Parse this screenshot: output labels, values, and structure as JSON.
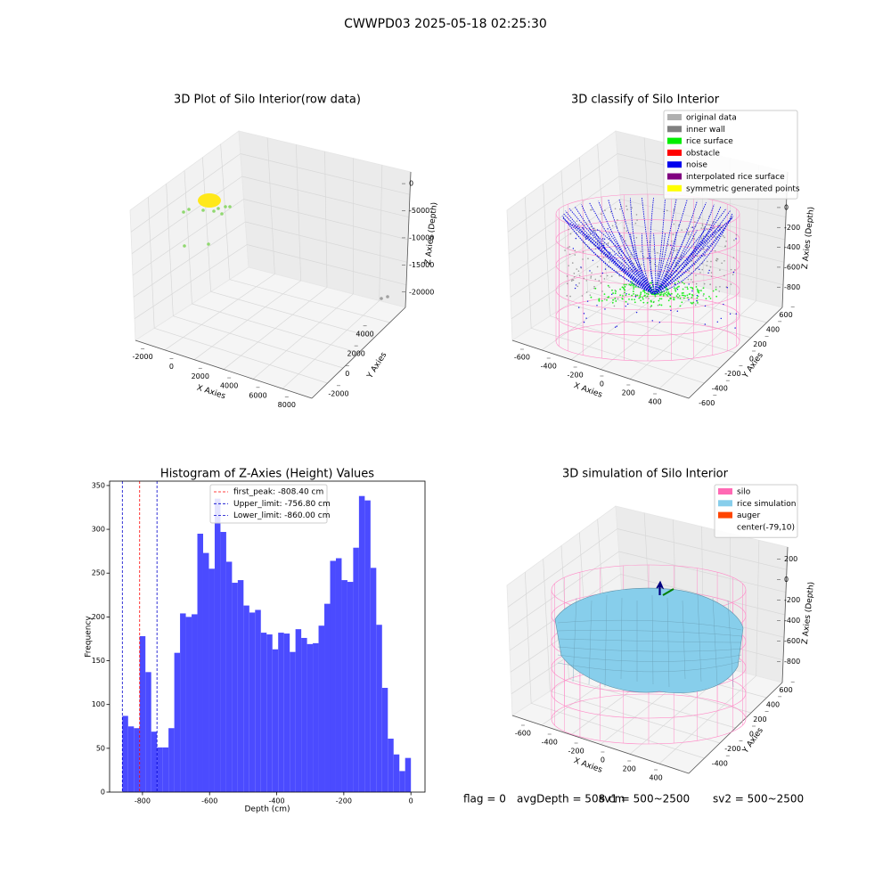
{
  "title": "CWWPD03 2025-05-18 02:25:30",
  "chart_data": [
    {
      "type": "scatter3d",
      "title": "3D Plot of Silo Interior(row data)",
      "xlabel": "X Axies",
      "ylabel": "Y Axies",
      "zlabel": "Z Axies (Depth)",
      "xlim": [
        -2500,
        9000
      ],
      "ylim": [
        -3000,
        5500
      ],
      "zlim": [
        -23000,
        1000
      ],
      "xticks": [
        -2000,
        0,
        2000,
        4000,
        6000,
        8000
      ],
      "yticks": [
        -2000,
        0,
        2000,
        4000
      ],
      "zticks": [
        0,
        -5000,
        -10000,
        -15000,
        -20000
      ]
    },
    {
      "type": "scatter3d",
      "title": "3D classify of Silo Interior",
      "xlabel": "X Axies",
      "ylabel": "Y Axies",
      "zlabel": "Z Axies (Depth)",
      "xlim": [
        -700,
        500
      ],
      "ylim": [
        -700,
        700
      ],
      "zlim": [
        -950,
        250
      ],
      "xticks": [
        -600,
        -400,
        -200,
        0,
        200,
        400
      ],
      "yticks": [
        -600,
        -400,
        -200,
        0,
        200,
        400,
        600
      ],
      "zticks": [
        0,
        -200,
        -400,
        -600,
        -800
      ],
      "legend": [
        {
          "name": "original data",
          "color": "#b0b0b0"
        },
        {
          "name": "inner wall",
          "color": "#808080"
        },
        {
          "name": "rice surface",
          "color": "#00ee00"
        },
        {
          "name": "obstacle",
          "color": "#ff0000"
        },
        {
          "name": "noise",
          "color": "#0000ee"
        },
        {
          "name": "interpolated rice surface",
          "color": "#800080"
        },
        {
          "name": "symmetric generated points",
          "color": "#ffff00"
        }
      ]
    },
    {
      "type": "histogram",
      "title": "Histogram of Z-Axies (Height) Values",
      "xlabel": "Depth (cm)",
      "ylabel": "Frequency",
      "color": "#4b4bff",
      "bins": [
        -860,
        -842.8,
        -825.6,
        -808.4,
        -791.2,
        -774,
        -756.8,
        -739.6,
        -722.4,
        -705.2,
        -688,
        -670.8,
        -653.6,
        -636.4,
        -619.2,
        -602,
        -584.8,
        -567.6,
        -550.4,
        -533.2,
        -516,
        -498.8,
        -481.6,
        -464.4,
        -447.2,
        -430,
        -412.8,
        -395.6,
        -378.4,
        -361.2,
        -344,
        -326.8,
        -309.6,
        -292.4,
        -275.2,
        -258,
        -240.8,
        -223.6,
        -206.4,
        -189.2,
        -172,
        -154.8,
        -137.6,
        -120.4,
        -103.2,
        -86,
        -68.8,
        -51.6,
        -34.4,
        -17.2,
        0
      ],
      "values": [
        87,
        75,
        73,
        178,
        137,
        69,
        51,
        51,
        73,
        159,
        204,
        200,
        203,
        295,
        273,
        255,
        335,
        297,
        263,
        239,
        242,
        213,
        205,
        208,
        182,
        180,
        163,
        182,
        181,
        160,
        186,
        176,
        169,
        170,
        190,
        215,
        264,
        267,
        242,
        240,
        279,
        338,
        333,
        256,
        191,
        119,
        61,
        43,
        24,
        39
      ],
      "xlim": [
        -898,
        42
      ],
      "ylim": [
        0,
        355
      ],
      "xticks": [
        -800,
        -600,
        -400,
        -200,
        0
      ],
      "yticks": [
        0,
        50,
        100,
        150,
        200,
        250,
        300,
        350
      ],
      "vlines": [
        {
          "name": "first_peak: -808.40 cm",
          "value": -808.4,
          "color": "#ff0000"
        },
        {
          "name": "Upper_limit: -756.80 cm",
          "value": -756.8,
          "color": "#0000cc"
        },
        {
          "name": "Lower_limit: -860.00 cm",
          "value": -860,
          "color": "#0000cc"
        }
      ]
    },
    {
      "type": "surface3d",
      "title": "3D simulation of Silo Interior",
      "xlabel": "X Axies",
      "ylabel": "Y Axies",
      "zlabel": "Z Axies (Depth)",
      "xlim": [
        -700,
        500
      ],
      "ylim": [
        -700,
        700
      ],
      "zlim": [
        -950,
        300
      ],
      "xticks": [
        -600,
        -400,
        -200,
        0,
        200,
        400
      ],
      "yticks": [
        -400,
        -200,
        0,
        200,
        400,
        600
      ],
      "zticks": [
        200,
        0,
        -200,
        -400,
        -600,
        -800
      ],
      "legend": [
        {
          "name": "silo",
          "color": "#ff69b4"
        },
        {
          "name": "rice simulation",
          "color": "#87ceeb"
        },
        {
          "name": "auger",
          "color": "#ff4500"
        },
        {
          "name": "center(-79,10)",
          "color": "#ffffff"
        }
      ]
    }
  ],
  "footer": [
    "flag = 0",
    "avgDepth = 508 cm",
    "sv1 = 500~2500",
    "sv2 = 500~2500"
  ]
}
